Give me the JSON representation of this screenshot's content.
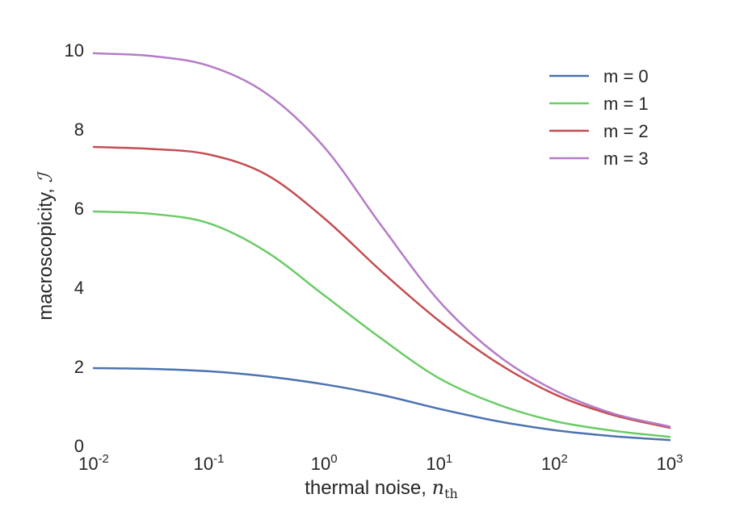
{
  "chart_data": {
    "type": "line",
    "x_scale": "log",
    "xlim": [
      0.01,
      1000
    ],
    "ylim": [
      0,
      10
    ],
    "grid": false,
    "legend_position": "top-right",
    "xlabel": "thermal noise,",
    "xlabel_math": "n",
    "xlabel_sub": "th",
    "ylabel": "macroscopicity,",
    "ylabel_math": "ℐ",
    "x_ticks": [
      {
        "value": 0.01,
        "base": "10",
        "exp": "-2"
      },
      {
        "value": 0.1,
        "base": "10",
        "exp": "-1"
      },
      {
        "value": 1,
        "base": "10",
        "exp": "0"
      },
      {
        "value": 10,
        "base": "10",
        "exp": "1"
      },
      {
        "value": 100,
        "base": "10",
        "exp": "2"
      },
      {
        "value": 1000,
        "base": "10",
        "exp": "3"
      }
    ],
    "y_ticks": [
      {
        "value": 0,
        "label": "0"
      },
      {
        "value": 2,
        "label": "2"
      },
      {
        "value": 4,
        "label": "4"
      },
      {
        "value": 6,
        "label": "6"
      },
      {
        "value": 8,
        "label": "8"
      },
      {
        "value": 10,
        "label": "10"
      }
    ],
    "x": [
      0.01,
      0.0316,
      0.1,
      0.316,
      1,
      3.16,
      10,
      31.6,
      100,
      316,
      1000
    ],
    "series": [
      {
        "name": "m = 0",
        "color": "#4c72b0",
        "values": [
          1.96,
          1.94,
          1.88,
          1.75,
          1.55,
          1.28,
          0.93,
          0.62,
          0.39,
          0.24,
          0.14
        ]
      },
      {
        "name": "m = 1",
        "color": "#6acc65",
        "values": [
          5.92,
          5.86,
          5.62,
          4.9,
          3.8,
          2.7,
          1.7,
          1.05,
          0.62,
          0.38,
          0.22
        ]
      },
      {
        "name": "m = 2",
        "color": "#c44e52",
        "values": [
          7.55,
          7.5,
          7.36,
          6.85,
          5.75,
          4.4,
          3.15,
          2.1,
          1.3,
          0.78,
          0.45
        ]
      },
      {
        "name": "m = 3",
        "color": "#b47cc7",
        "values": [
          9.92,
          9.85,
          9.6,
          8.9,
          7.55,
          5.55,
          3.65,
          2.3,
          1.4,
          0.82,
          0.48
        ]
      }
    ]
  }
}
